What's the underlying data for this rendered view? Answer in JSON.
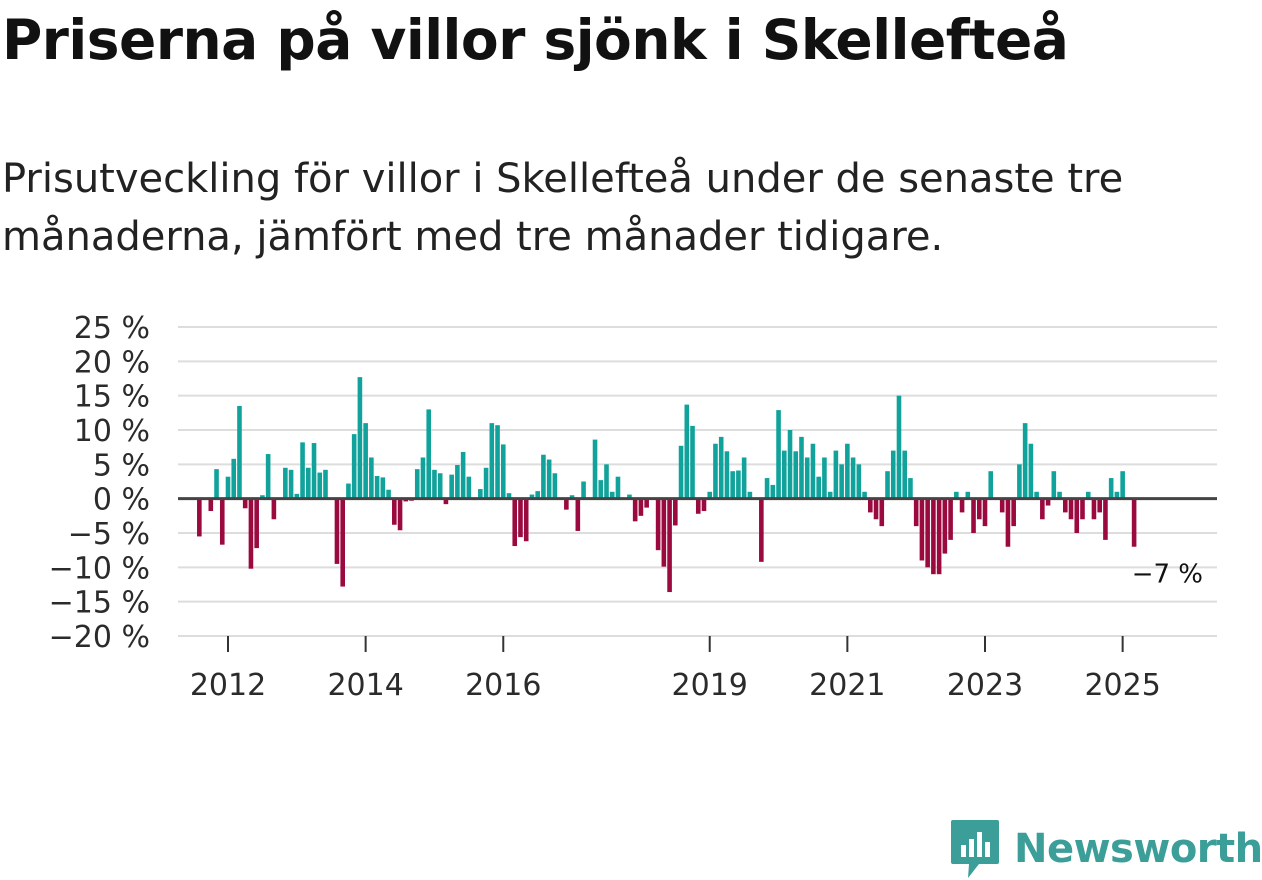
{
  "title": "Priserna på villor sjönk i Skellefteå",
  "subtitle": "Prisutveckling för villor i Skellefteå under de senaste tre månaderna, jämfört med tre månader tidigare.",
  "brand": {
    "name": "Newsworthy",
    "color": "#3b9e98",
    "icon": "newsworthy-logo-icon"
  },
  "colors": {
    "positive": "#11a39b",
    "negative": "#9b0a3f",
    "grid": "#dddddd",
    "zero": "#444444"
  },
  "chart_data": {
    "type": "bar",
    "title": "",
    "xlabel": "",
    "ylabel": "",
    "ylim": [
      -20,
      25
    ],
    "y_ticks": [
      25,
      20,
      15,
      10,
      5,
      0,
      -5,
      -10,
      -15,
      -20
    ],
    "y_tick_labels": [
      "25 %",
      "20 %",
      "15 %",
      "10 %",
      "5 %",
      "0 %",
      "−5 %",
      "−10 %",
      "−15 %",
      "−20 %"
    ],
    "x_ticks": [
      {
        "year": 2012,
        "label": "2012"
      },
      {
        "year": 2014,
        "label": "2014"
      },
      {
        "year": 2016,
        "label": "2016"
      },
      {
        "year": 2019,
        "label": "2019"
      },
      {
        "year": 2021,
        "label": "2021"
      },
      {
        "year": 2023,
        "label": "2023"
      },
      {
        "year": 2025,
        "label": "2025"
      }
    ],
    "x_start": "2011-07",
    "end_label": "−7 %",
    "series": [
      {
        "name": "Prisutveckling (%)",
        "values": [
          0,
          -5.5,
          0,
          -1.8,
          4.3,
          -6.7,
          3.2,
          5.8,
          13.5,
          -1.4,
          -10.2,
          -7.2,
          0.5,
          6.5,
          -3,
          0,
          4.5,
          4.2,
          0.7,
          8.2,
          4.5,
          8.1,
          3.8,
          4.2,
          0,
          -9.5,
          -12.8,
          2.2,
          9.4,
          17.7,
          11,
          6,
          3.3,
          3.1,
          1.3,
          -3.8,
          -4.6,
          -0.4,
          -0.3,
          4.3,
          6,
          13,
          4.2,
          3.7,
          -0.8,
          3.5,
          4.9,
          6.8,
          3.2,
          -0.2,
          1.4,
          4.5,
          11,
          10.7,
          7.9,
          0.8,
          -6.9,
          -5.6,
          -6.2,
          0.6,
          1.1,
          6.4,
          5.7,
          3.7,
          0,
          -1.6,
          0.5,
          -4.7,
          2.5,
          0,
          8.6,
          2.7,
          5,
          1,
          3.2,
          0,
          0.6,
          -3.3,
          -2.5,
          -1.3,
          0,
          -7.5,
          -9.9,
          -13.6,
          -3.9,
          7.7,
          13.7,
          10.6,
          -2.2,
          -1.8,
          1,
          8,
          9,
          6.9,
          4,
          4.1,
          6,
          1,
          0,
          -9.2,
          3,
          2,
          12.9,
          7,
          10,
          6.9,
          9,
          6,
          8,
          3.2,
          6,
          1,
          7,
          5,
          8,
          6,
          5,
          1,
          -2,
          -3,
          -4,
          4,
          7,
          15,
          7,
          3,
          -4,
          -9,
          -10,
          -11,
          -11,
          -8,
          -6,
          1,
          -2,
          1,
          -5,
          -3,
          -4,
          4,
          0,
          -2,
          -7,
          -4,
          5,
          11,
          8,
          1,
          -3,
          -1,
          4,
          1,
          -2,
          -3,
          -5,
          -3,
          1,
          -3,
          -2,
          -6,
          3,
          1,
          4,
          0,
          -7
        ]
      }
    ]
  }
}
